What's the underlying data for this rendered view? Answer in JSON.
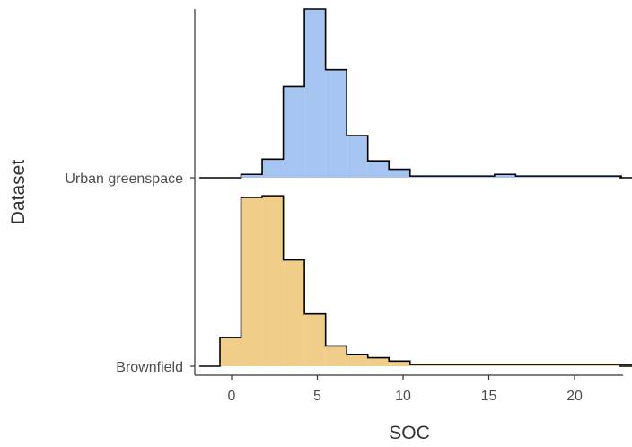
{
  "chart_data": {
    "type": "ridgeline-histogram",
    "xlabel": "SOC",
    "ylabel": "Dataset",
    "xlim": [
      -2,
      22.6
    ],
    "x_ticks": [
      0,
      5,
      10,
      15,
      20
    ],
    "grid": false,
    "legend": "none",
    "bin_width": 1.232,
    "series": [
      {
        "name": "Urban greenspace",
        "color": "#a6c4f0",
        "bin_start": 0.55,
        "values": [
          2,
          11,
          54,
          100,
          64,
          25,
          10,
          5,
          1,
          1,
          1,
          1,
          2,
          1,
          1,
          1,
          1,
          1,
          0,
          0
        ]
      },
      {
        "name": "Brownfield",
        "color": "#f0ce8a",
        "bin_start": -0.68,
        "values": [
          17,
          100,
          101,
          63,
          31,
          12,
          7,
          5,
          3,
          1,
          1,
          1,
          1,
          1,
          1,
          1,
          1,
          1,
          1,
          1,
          1
        ]
      }
    ]
  }
}
